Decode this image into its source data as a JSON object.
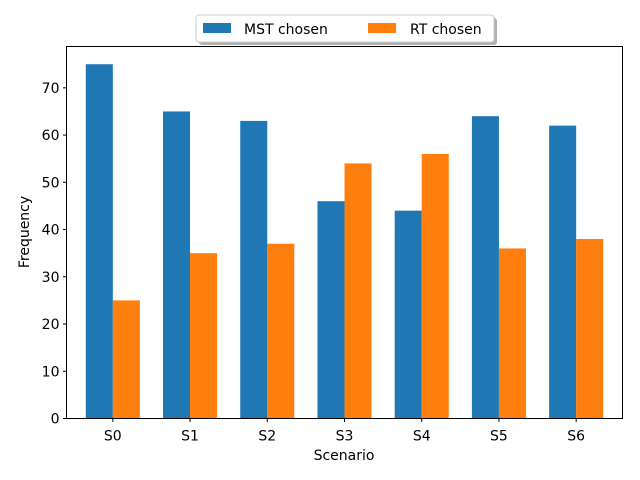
{
  "chart_data": {
    "type": "bar",
    "title": "",
    "xlabel": "Scenario",
    "ylabel": "Frequency",
    "categories": [
      "S0",
      "S1",
      "S2",
      "S3",
      "S4",
      "S5",
      "S6"
    ],
    "series": [
      {
        "name": "MST chosen",
        "color": "#1f77b4",
        "values": [
          75,
          65,
          63,
          46,
          44,
          64,
          62
        ]
      },
      {
        "name": "RT chosen",
        "color": "#ff7f0e",
        "values": [
          25,
          35,
          37,
          54,
          56,
          36,
          38
        ]
      }
    ],
    "ylim": [
      0,
      78.75
    ],
    "yticks": [
      0,
      10,
      20,
      30,
      40,
      50,
      60,
      70
    ],
    "grid": false,
    "legend": "top-center"
  }
}
